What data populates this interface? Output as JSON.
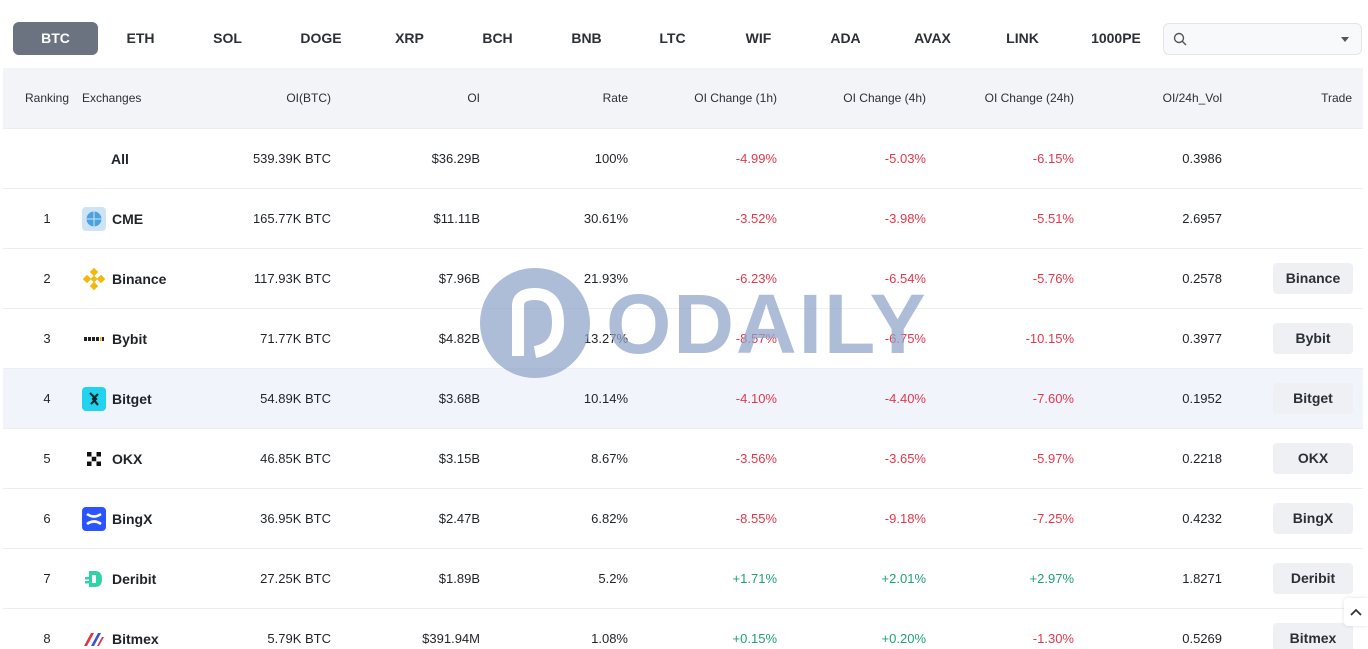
{
  "tabs": [
    "BTC",
    "ETH",
    "SOL",
    "DOGE",
    "XRP",
    "BCH",
    "BNB",
    "LTC",
    "WIF",
    "ADA",
    "AVAX",
    "LINK",
    "1000PE"
  ],
  "active_tab": "BTC",
  "search": {
    "placeholder": ""
  },
  "table": {
    "headers": {
      "ranking": "Ranking",
      "exchanges": "Exchanges",
      "oi_btc": "OI(BTC)",
      "oi": "OI",
      "rate": "Rate",
      "oi_change_1h": "OI Change (1h)",
      "oi_change_4h": "OI Change (4h)",
      "oi_change_24h": "OI Change (24h)",
      "oi_24h_vol": "OI/24h_Vol",
      "trade": "Trade"
    },
    "total": {
      "name": "All",
      "oi_btc": "539.39K BTC",
      "oi": "$36.29B",
      "rate": "100%",
      "ch1": "-4.99%",
      "ch4": "-5.03%",
      "ch24": "-6.15%",
      "vol": "0.3986"
    },
    "rows": [
      {
        "rank": "1",
        "name": "CME",
        "icon": "globe-icon",
        "oi_btc": "165.77K BTC",
        "oi": "$11.11B",
        "rate": "30.61%",
        "ch1": "-3.52%",
        "ch4": "-3.98%",
        "ch24": "-5.51%",
        "vol": "2.6957",
        "trade": ""
      },
      {
        "rank": "2",
        "name": "Binance",
        "icon": "binance-icon",
        "oi_btc": "117.93K BTC",
        "oi": "$7.96B",
        "rate": "21.93%",
        "ch1": "-6.23%",
        "ch4": "-6.54%",
        "ch24": "-5.76%",
        "vol": "0.2578",
        "trade": "Binance"
      },
      {
        "rank": "3",
        "name": "Bybit",
        "icon": "bybit-icon",
        "oi_btc": "71.77K BTC",
        "oi": "$4.82B",
        "rate": "13.27%",
        "ch1": "-8.57%",
        "ch4": "-6.75%",
        "ch24": "-10.15%",
        "vol": "0.3977",
        "trade": "Bybit"
      },
      {
        "rank": "4",
        "name": "Bitget",
        "icon": "bitget-icon",
        "oi_btc": "54.89K BTC",
        "oi": "$3.68B",
        "rate": "10.14%",
        "ch1": "-4.10%",
        "ch4": "-4.40%",
        "ch24": "-7.60%",
        "vol": "0.1952",
        "trade": "Bitget"
      },
      {
        "rank": "5",
        "name": "OKX",
        "icon": "okx-icon",
        "oi_btc": "46.85K BTC",
        "oi": "$3.15B",
        "rate": "8.67%",
        "ch1": "-3.56%",
        "ch4": "-3.65%",
        "ch24": "-5.97%",
        "vol": "0.2218",
        "trade": "OKX"
      },
      {
        "rank": "6",
        "name": "BingX",
        "icon": "bingx-icon",
        "oi_btc": "36.95K BTC",
        "oi": "$2.47B",
        "rate": "6.82%",
        "ch1": "-8.55%",
        "ch4": "-9.18%",
        "ch24": "-7.25%",
        "vol": "0.4232",
        "trade": "BingX"
      },
      {
        "rank": "7",
        "name": "Deribit",
        "icon": "deribit-icon",
        "oi_btc": "27.25K BTC",
        "oi": "$1.89B",
        "rate": "5.2%",
        "ch1": "+1.71%",
        "ch4": "+2.01%",
        "ch24": "+2.97%",
        "vol": "1.8271",
        "trade": "Deribit"
      },
      {
        "rank": "8",
        "name": "Bitmex",
        "icon": "bitmex-icon",
        "oi_btc": "5.79K BTC",
        "oi": "$391.94M",
        "rate": "1.08%",
        "ch1": "+0.15%",
        "ch4": "+0.20%",
        "ch24": "-1.30%",
        "vol": "0.5269",
        "trade": "Bitmex"
      }
    ]
  },
  "watermark": {
    "text": "ODAILY"
  },
  "colors": {
    "negative": "#e5374c",
    "positive": "#1fa17a",
    "active_tab": "#6b7280",
    "highlight_row": "#f1f4fa"
  }
}
